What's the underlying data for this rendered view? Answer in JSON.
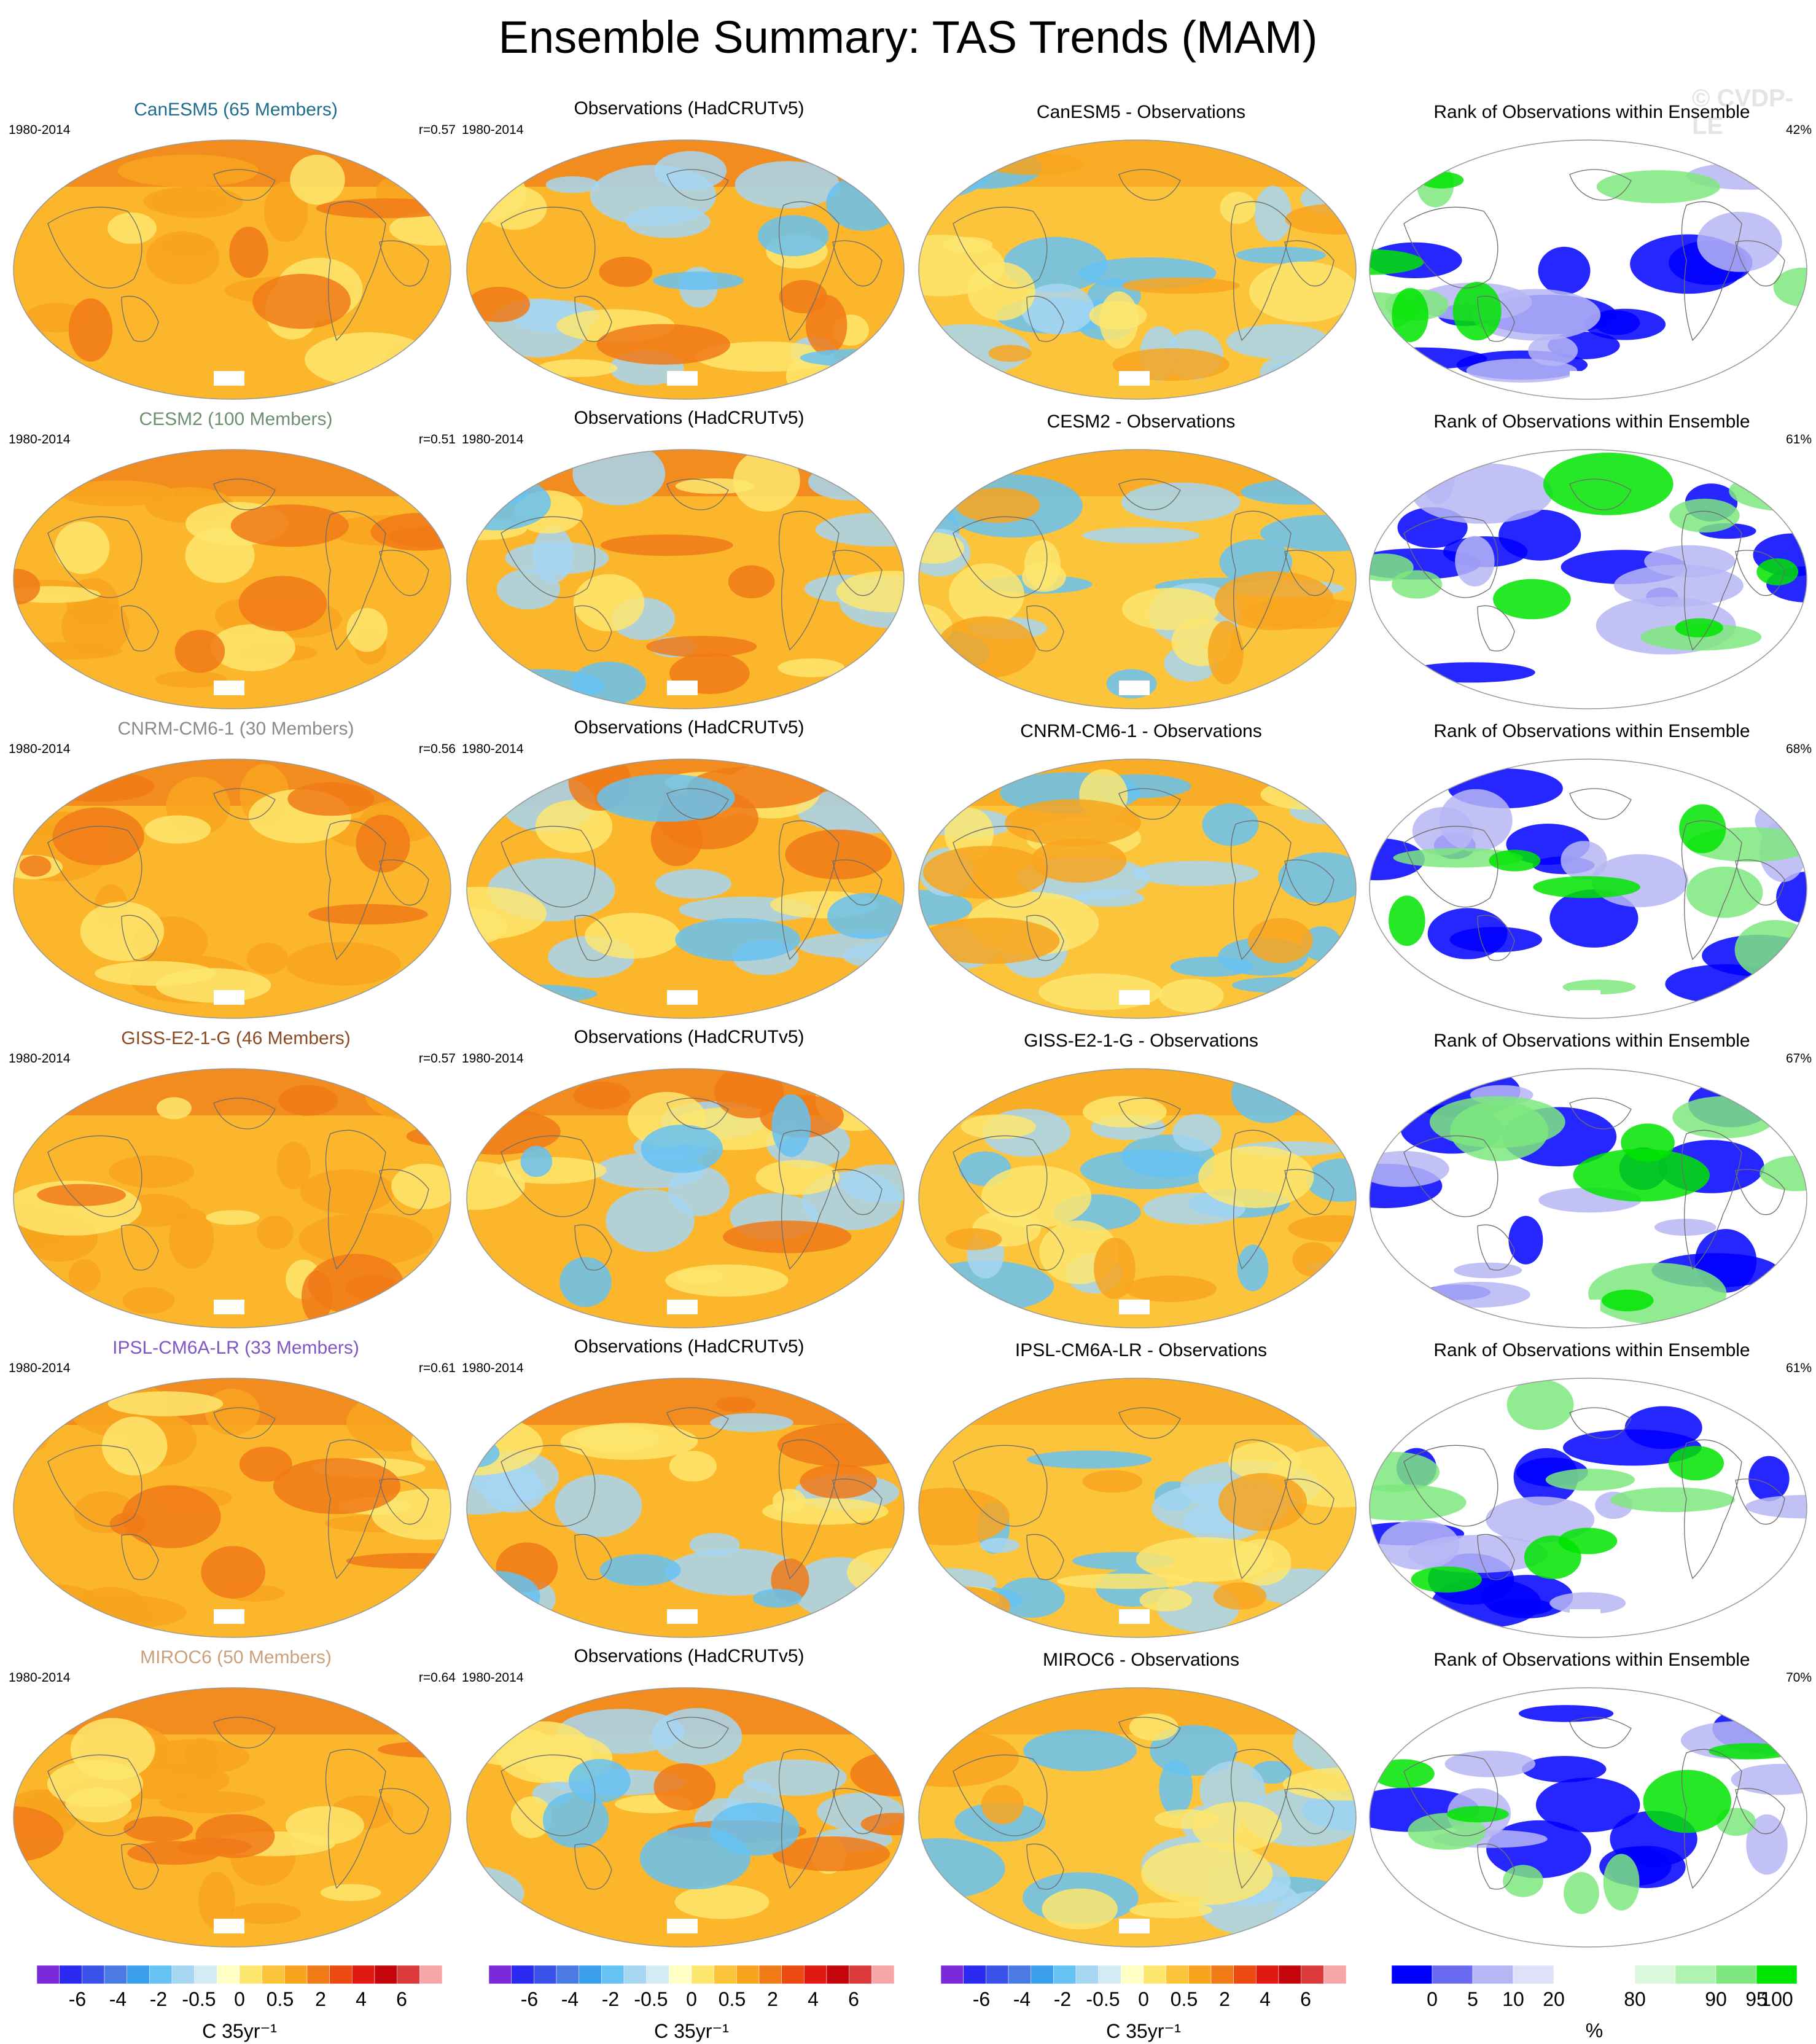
{
  "title": "Ensemble Summary: TAS Trends (MAM)",
  "watermark": "© CVDP-LE",
  "period": "1980-2014",
  "obs_title": "Observations (HadCRUTv5)",
  "rank_title": "Rank of Observations within Ensemble",
  "rows": [
    {
      "model_title": "CanESM5 (65 Members)",
      "model_color": "#1f6d8c",
      "r": "r=0.57",
      "diff_title": "CanESM5 - Observations",
      "rank_pct": "42%"
    },
    {
      "model_title": "CESM2 (100 Members)",
      "model_color": "#6e8e6e",
      "r": "r=0.51",
      "diff_title": "CESM2 - Observations",
      "rank_pct": "61%"
    },
    {
      "model_title": "CNRM-CM6-1 (30 Members)",
      "model_color": "#8a8a8a",
      "r": "r=0.56",
      "diff_title": "CNRM-CM6-1 - Observations",
      "rank_pct": "68%"
    },
    {
      "model_title": "GISS-E2-1-G (46 Members)",
      "model_color": "#8a4a24",
      "r": "r=0.57",
      "diff_title": "GISS-E2-1-G - Observations",
      "rank_pct": "67%"
    },
    {
      "model_title": "IPSL-CM6A-LR (33 Members)",
      "model_color": "#7f55c8",
      "r": "r=0.61",
      "diff_title": "IPSL-CM6A-LR - Observations",
      "rank_pct": "61%"
    },
    {
      "model_title": "MIROC6 (50 Members)",
      "model_color": "#c9a07a",
      "r": "r=0.64",
      "diff_title": "MIROC6 - Observations",
      "rank_pct": "70%"
    }
  ],
  "chart_data": {
    "type": "heatmap",
    "projection": "global map panels, 6 rows x 4 columns",
    "columns": [
      "model ensemble mean",
      "observations",
      "model - observations",
      "rank of observations within ensemble"
    ],
    "trend_colorbar": {
      "tick_labels": [
        "-6",
        "-4",
        "-2",
        "-0.5",
        "0",
        "0.5",
        "2",
        "4",
        "6"
      ],
      "unit": "C 35yr⁻¹",
      "colors": [
        "#7a2ad8",
        "#2a2af0",
        "#3a52e8",
        "#4a7ae4",
        "#3aa0ee",
        "#66c2f2",
        "#a6d6f2",
        "#d4ebf4",
        "#ffffc6",
        "#fde66e",
        "#fbc43a",
        "#f8a41e",
        "#f07a18",
        "#ec4a12",
        "#e01a10",
        "#c4060c",
        "#dc3a3a",
        "#f6a6a6"
      ]
    },
    "rank_colorbar": {
      "tick_labels": [
        "0",
        "5",
        "10",
        "20",
        "80",
        "90",
        "95",
        "100"
      ],
      "unit": "%",
      "colors": [
        "#0000ff",
        "#6a6af0",
        "#b6b6f4",
        "#e0e0f8",
        "#ffffff",
        "#ffffff",
        "#dcf8dc",
        "#b0f2b0",
        "#7ee87e",
        "#00e400"
      ]
    }
  }
}
